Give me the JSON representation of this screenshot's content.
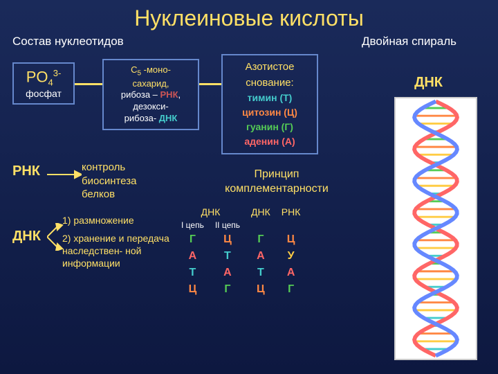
{
  "title": "Нуклеиновые кислоты",
  "subtitle_left": "Состав нуклеотидов",
  "subtitle_right": "Двойная спираль",
  "phosphate": {
    "formula_base": "PO",
    "formula_sub": "4",
    "formula_sup": "3-",
    "label": "фосфат"
  },
  "sugar": {
    "line1_prefix": "С",
    "line1_sub": "5",
    "line1_suffix": " -моно-",
    "line2": "сахарид,",
    "line3a": "рибоза – ",
    "line3b": "РНК",
    "line3c": ",",
    "line4a": "дезокси-",
    "line5a": "рибоза- ",
    "line5b": "ДНК"
  },
  "bases": {
    "title": "Азотистое",
    "title2": "снование:",
    "t": "тимин (Т)",
    "c": "цитозин (Ц)",
    "g": "гуанин (Г)",
    "a": "аденин (А)"
  },
  "rna": {
    "label": "РНК",
    "func1": "контроль",
    "func2": "биосинтеза",
    "func3": "белков"
  },
  "dna_left": {
    "label": "ДНК",
    "func1": "1) размножение",
    "func2": "2) хранение и передача наследствен- ной информации"
  },
  "complement": {
    "title1": "Принцип",
    "title2": "комплементарности",
    "headers": {
      "dna1": "ДНК",
      "dna2": "ДНК",
      "rna": "РНК"
    },
    "subheaders": {
      "c1": "I цепь",
      "c2": "II цепь"
    },
    "rows": [
      [
        "Г",
        "Ц",
        "Г",
        "Ц"
      ],
      [
        "А",
        "Т",
        "А",
        "У"
      ],
      [
        "Т",
        "А",
        "Т",
        "А"
      ],
      [
        "Ц",
        "Г",
        "Ц",
        "Г"
      ]
    ],
    "row_colors": [
      [
        "#55cc55",
        "#ff8844",
        "#55cc55",
        "#ff8844"
      ],
      [
        "#ff6666",
        "#44cccc",
        "#ff6666",
        "#ffcc44"
      ],
      [
        "#44cccc",
        "#ff6666",
        "#44cccc",
        "#ff6666"
      ],
      [
        "#ff8844",
        "#55cc55",
        "#ff8844",
        "#55cc55"
      ]
    ]
  },
  "dna_right_label": "ДНК",
  "helix": {
    "strand1_color": "#ff6666",
    "strand2_color": "#6688ff",
    "rung_colors": [
      "#55cc55",
      "#ff8844",
      "#ffcc44",
      "#44cccc"
    ],
    "background": "#ffffff",
    "turns": 4
  },
  "colors": {
    "bg_top": "#1a2a5a",
    "bg_bottom": "#0d1840",
    "title_color": "#ffe066",
    "box_border": "#6688cc"
  }
}
